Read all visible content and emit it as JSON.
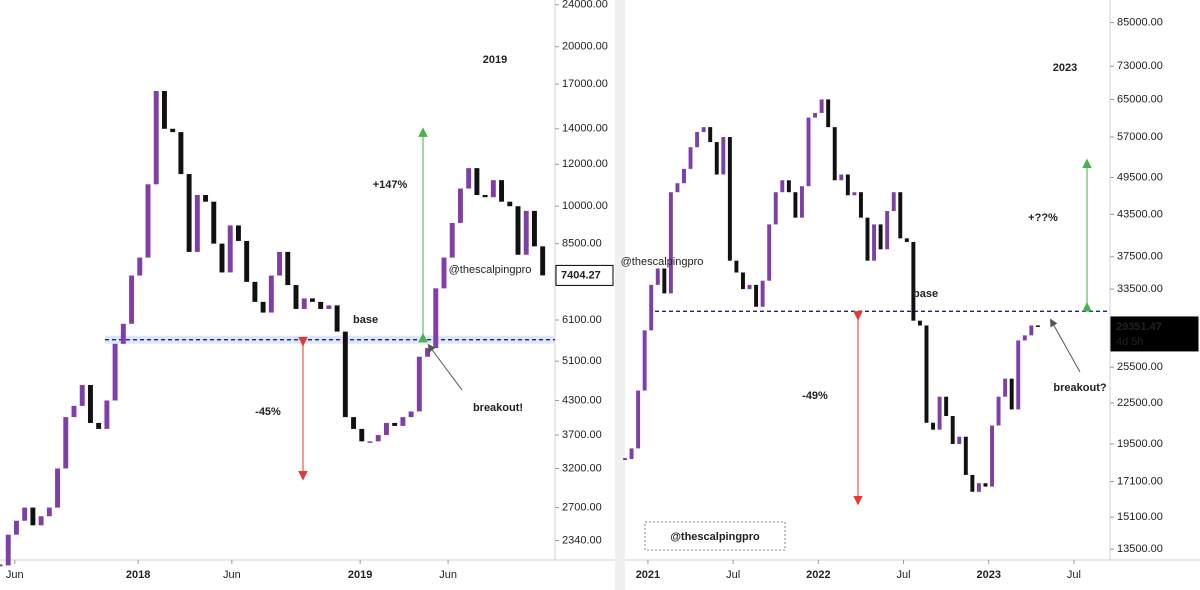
{
  "chart_data": [
    {
      "type": "candlestick",
      "title": "2019",
      "log_scale": true,
      "up_color": "#7e3fa8",
      "down_color": "#111111",
      "xlim": [
        0,
        135
      ],
      "ylim": [
        2150,
        24500
      ],
      "xticks": [
        {
          "value": 3.6,
          "label": "Jun"
        },
        {
          "value": 33.6,
          "label": "2018"
        },
        {
          "value": 56.4,
          "label": "Jun"
        },
        {
          "value": 87.6,
          "label": "2019"
        },
        {
          "value": 109,
          "label": "Jun"
        }
      ],
      "yticks": [
        {
          "value": 24000,
          "label": "24000.00"
        },
        {
          "value": 20000,
          "label": "20000.00"
        },
        {
          "value": 17000,
          "label": "17000.00"
        },
        {
          "value": 14000,
          "label": "14000.00"
        },
        {
          "value": 12000,
          "label": "12000.00"
        },
        {
          "value": 10000,
          "label": "10000.00"
        },
        {
          "value": 8500,
          "label": "8500.00"
        },
        {
          "value": 6100,
          "label": "6100.00"
        },
        {
          "value": 5100,
          "label": "5100.00"
        },
        {
          "value": 4300,
          "label": "4300.00"
        },
        {
          "value": 3700,
          "label": "3700.00"
        },
        {
          "value": 3200,
          "label": "3200.00"
        },
        {
          "value": 2700,
          "label": "2700.00"
        },
        {
          "value": 2340,
          "label": "2340.00"
        }
      ],
      "x": [
        0,
        2,
        4,
        6,
        8,
        10,
        12,
        14,
        16,
        18,
        20,
        22,
        24,
        26,
        28,
        30,
        32,
        34,
        36,
        38,
        40,
        42,
        44,
        46,
        48,
        50,
        52,
        54,
        56,
        58,
        60,
        62,
        64,
        66,
        68,
        70,
        72,
        74,
        76,
        78,
        80,
        82,
        84,
        86,
        88,
        90,
        92,
        94,
        96,
        98,
        100,
        102,
        104,
        106,
        108,
        110,
        112,
        114,
        116,
        118,
        120,
        122,
        124,
        126,
        128,
        130,
        132
      ],
      "values": [
        2100,
        2400,
        2550,
        2700,
        2500,
        2600,
        2700,
        3200,
        4000,
        4200,
        4600,
        3900,
        3800,
        4300,
        5500,
        6000,
        7400,
        8000,
        11000,
        16500,
        14000,
        13800,
        11500,
        8200,
        10500,
        10200,
        8500,
        7500,
        9200,
        8600,
        7200,
        6600,
        6300,
        7400,
        8200,
        7100,
        6400,
        6700,
        6600,
        6400,
        6500,
        5800,
        4000,
        3800,
        3600,
        3600,
        3700,
        3900,
        3850,
        4000,
        4100,
        5200,
        5400,
        7000,
        8000,
        9300,
        10800,
        11800,
        10500,
        10400,
        11200,
        10200,
        10000,
        8100,
        9800,
        8400,
        7404.27
      ],
      "base_label": "base",
      "base_level": 5600,
      "breakout_label": "breakout!",
      "gain_label": "+147%",
      "gain_range": [
        5650,
        13800
      ],
      "loss_label": "-45%",
      "loss_range": [
        5550,
        3100
      ],
      "watermark": "@thescalpingpro"
    },
    {
      "type": "candlestick",
      "title": "2023",
      "log_scale": true,
      "up_color": "#7e3fa8",
      "down_color": "#111111",
      "xlim": [
        0,
        148
      ],
      "ylim": [
        13000,
        92000
      ],
      "xticks": [
        {
          "value": 7,
          "label": "2021"
        },
        {
          "value": 33,
          "label": "Jul"
        },
        {
          "value": 59,
          "label": "2022"
        },
        {
          "value": 85,
          "label": "Jul"
        },
        {
          "value": 111,
          "label": "2023"
        },
        {
          "value": 137,
          "label": "Jul"
        }
      ],
      "yticks": [
        {
          "value": 85000,
          "label": "85000.00"
        },
        {
          "value": 73000,
          "label": "73000.00"
        },
        {
          "value": 65000,
          "label": "65000.00"
        },
        {
          "value": 57000,
          "label": "57000.00"
        },
        {
          "value": 49500,
          "label": "49500.00"
        },
        {
          "value": 43500,
          "label": "43500.00"
        },
        {
          "value": 37500,
          "label": "37500.00"
        },
        {
          "value": 33500,
          "label": "33500.00"
        },
        {
          "value": 25500,
          "label": "25500.00"
        },
        {
          "value": 22500,
          "label": "22500.00"
        },
        {
          "value": 19500,
          "label": "19500.00"
        },
        {
          "value": 17100,
          "label": "17100.00"
        },
        {
          "value": 15100,
          "label": "15100.00"
        },
        {
          "value": 13500,
          "label": "13500.00"
        }
      ],
      "x": [
        0,
        2,
        4,
        6,
        8,
        10,
        12,
        14,
        16,
        18,
        20,
        22,
        24,
        26,
        28,
        30,
        32,
        34,
        36,
        38,
        40,
        42,
        44,
        46,
        48,
        50,
        52,
        54,
        56,
        58,
        60,
        62,
        64,
        66,
        68,
        70,
        72,
        74,
        76,
        78,
        80,
        82,
        84,
        86,
        88,
        90,
        92,
        94,
        96,
        98,
        100,
        102,
        104,
        106,
        108,
        110,
        112,
        114,
        116,
        118,
        120,
        122,
        124,
        126
      ],
      "values": [
        18500,
        19200,
        23500,
        29000,
        34000,
        36000,
        33000,
        47000,
        48500,
        51000,
        55000,
        58000,
        59000,
        56000,
        50000,
        57000,
        37000,
        35500,
        33500,
        34000,
        31500,
        34500,
        42000,
        47000,
        49000,
        47000,
        43000,
        48000,
        61000,
        62000,
        65000,
        59000,
        49000,
        50000,
        46500,
        47000,
        43000,
        37000,
        42000,
        38500,
        44000,
        47000,
        40000,
        39500,
        30000,
        29500,
        21000,
        20500,
        23000,
        21500,
        19500,
        20000,
        17500,
        16500,
        17000,
        16800,
        20800,
        23000,
        24500,
        22000,
        28000,
        28500,
        29500,
        29351.47
      ],
      "base_label": "base",
      "base_level": 31000,
      "breakout_label": "breakout?",
      "gain_label": "+??%",
      "gain_range": [
        31500,
        52000
      ],
      "loss_label": "-49%",
      "loss_range": [
        30500,
        16000
      ],
      "watermark": "@thescalpingpro",
      "countdown": "4d 5h"
    }
  ]
}
